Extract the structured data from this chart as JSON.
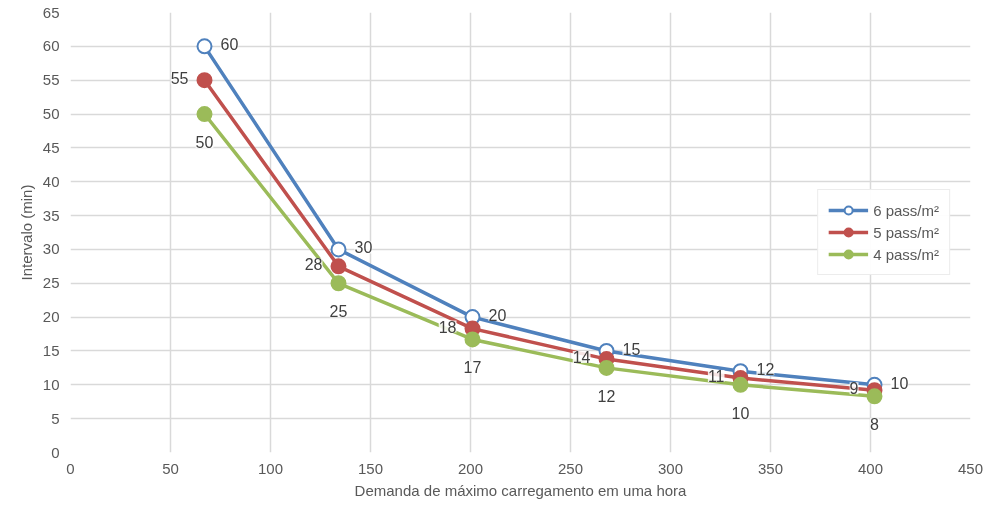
{
  "chart_data": {
    "type": "line",
    "xlabel": "Demanda de máximo carregamento em uma hora",
    "ylabel": "Intervalo (min)",
    "x": [
      67,
      134,
      201,
      268,
      335,
      402
    ],
    "series": [
      {
        "name": "6 pass/m²",
        "color": "#4f81bd",
        "values": [
          60,
          30,
          20,
          15,
          12,
          10
        ],
        "value_labels": [
          "60",
          "30",
          "20",
          "15",
          "12",
          "10"
        ]
      },
      {
        "name": "5 pass/m²",
        "color": "#c0504d",
        "values": [
          55,
          27.5,
          18.3,
          13.8,
          11,
          9.2
        ],
        "value_labels": [
          "55",
          "28",
          "18",
          "14",
          "11",
          "9"
        ]
      },
      {
        "name": "4 pass/m²",
        "color": "#9bbb59",
        "values": [
          50,
          25,
          16.7,
          12.5,
          10,
          8.3
        ],
        "value_labels": [
          "50",
          "25",
          "17",
          "12",
          "10",
          "8"
        ]
      }
    ],
    "xlim": [
      0,
      450
    ],
    "xticks": [
      0,
      50,
      100,
      150,
      200,
      250,
      300,
      350,
      400,
      450
    ],
    "ylim": [
      0,
      65
    ],
    "yticks": [
      0,
      5,
      10,
      15,
      20,
      25,
      30,
      35,
      40,
      45,
      50,
      55,
      60,
      65
    ],
    "grid": true,
    "legend": "right",
    "marker": "circle",
    "line_style": "solid"
  }
}
